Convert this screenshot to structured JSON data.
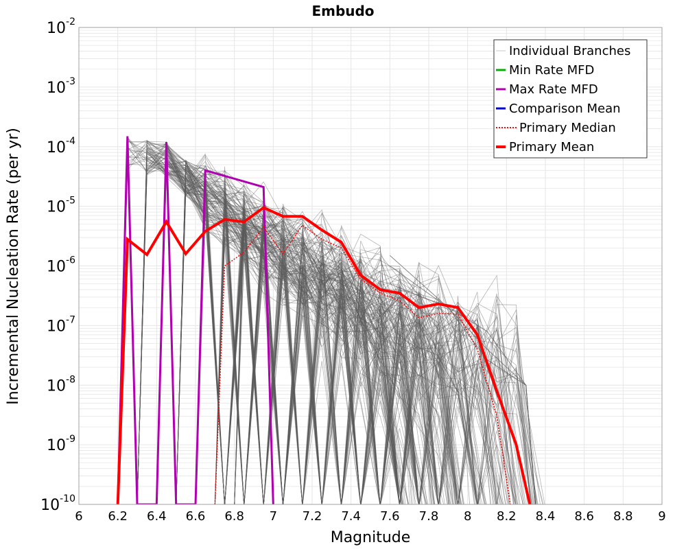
{
  "chart_data": {
    "type": "line",
    "title": "Embudo",
    "xlabel": "Magnitude",
    "ylabel": "Incremental Nucleation Rate (per yr)",
    "xlim": [
      6,
      9
    ],
    "ylim": [
      1e-10,
      0.01
    ],
    "yscale": "log",
    "grid": true,
    "legend_position": "top-right",
    "x_ticks": [
      "6",
      "6.2",
      "6.4",
      "6.6",
      "6.8",
      "7",
      "7.2",
      "7.4",
      "7.6",
      "7.8",
      "8",
      "8.2",
      "8.4",
      "8.6",
      "8.8",
      "9"
    ],
    "y_ticks": [
      {
        "base": "10",
        "exp": "-10"
      },
      {
        "base": "10",
        "exp": "-9"
      },
      {
        "base": "10",
        "exp": "-8"
      },
      {
        "base": "10",
        "exp": "-7"
      },
      {
        "base": "10",
        "exp": "-6"
      },
      {
        "base": "10",
        "exp": "-5"
      },
      {
        "base": "10",
        "exp": "-4"
      },
      {
        "base": "10",
        "exp": "-3"
      },
      {
        "base": "10",
        "exp": "-2"
      }
    ],
    "legend": [
      {
        "name": "Individual Branches",
        "color": "#c8c8c8",
        "style": "solid"
      },
      {
        "name": "Min Rate MFD",
        "color": "#00b000",
        "style": "solid"
      },
      {
        "name": "Max Rate MFD",
        "color": "#b000b0",
        "style": "solid"
      },
      {
        "name": "Comparison Mean",
        "color": "#0000dd",
        "style": "solid"
      },
      {
        "name": "Primary Median",
        "color": "#ff0000",
        "style": "dotted"
      },
      {
        "name": "Primary Mean",
        "color": "#ff0000",
        "style": "solid-thick"
      }
    ],
    "series": [
      {
        "name": "Max Rate MFD",
        "color": "#b000b0",
        "points": [
          [
            6.2,
            1e-10
          ],
          [
            6.25,
            0.00015
          ],
          [
            6.3,
            1e-10
          ],
          [
            6.4,
            1e-10
          ],
          [
            6.45,
            0.00012
          ],
          [
            6.5,
            1e-10
          ],
          [
            6.6,
            1e-10
          ],
          [
            6.65,
            4e-05
          ],
          [
            6.95,
            2.1e-05
          ],
          [
            7.0,
            1e-10
          ]
        ]
      },
      {
        "name": "Primary Median",
        "color": "#ff0000",
        "points": [
          [
            6.7,
            1e-10
          ],
          [
            6.75,
            1e-06
          ],
          [
            6.85,
            1.7e-06
          ],
          [
            6.95,
            4.5e-06
          ],
          [
            7.05,
            1.6e-06
          ],
          [
            7.15,
            4.8e-06
          ],
          [
            7.25,
            2.8e-06
          ],
          [
            7.35,
            2e-06
          ],
          [
            7.45,
            6e-07
          ],
          [
            7.55,
            3.5e-07
          ],
          [
            7.65,
            2.6e-07
          ],
          [
            7.75,
            1.35e-07
          ],
          [
            7.85,
            1.6e-07
          ],
          [
            7.95,
            1.55e-07
          ],
          [
            8.05,
            4e-08
          ],
          [
            8.15,
            3e-09
          ],
          [
            8.22,
            1e-10
          ]
        ]
      },
      {
        "name": "Primary Mean",
        "color": "#ff0000",
        "points": [
          [
            6.2,
            1e-10
          ],
          [
            6.25,
            2.8e-06
          ],
          [
            6.35,
            1.55e-06
          ],
          [
            6.45,
            5.5e-06
          ],
          [
            6.55,
            1.6e-06
          ],
          [
            6.65,
            3.8e-06
          ],
          [
            6.75,
            6e-06
          ],
          [
            6.85,
            5.5e-06
          ],
          [
            6.95,
            9.5e-06
          ],
          [
            7.05,
            6.8e-06
          ],
          [
            7.15,
            6.8e-06
          ],
          [
            7.25,
            4e-06
          ],
          [
            7.35,
            2.5e-06
          ],
          [
            7.45,
            7e-07
          ],
          [
            7.55,
            4e-07
          ],
          [
            7.65,
            3.5e-07
          ],
          [
            7.75,
            2e-07
          ],
          [
            7.85,
            2.3e-07
          ],
          [
            7.95,
            2e-07
          ],
          [
            8.05,
            7e-08
          ],
          [
            8.15,
            8e-09
          ],
          [
            8.25,
            1e-09
          ],
          [
            8.32,
            1e-10
          ]
        ]
      }
    ],
    "branches_note_count": 0
  },
  "colors": {
    "branch": "#5a5a5a",
    "grid": "#e6e6e6",
    "axis": "#999999"
  }
}
